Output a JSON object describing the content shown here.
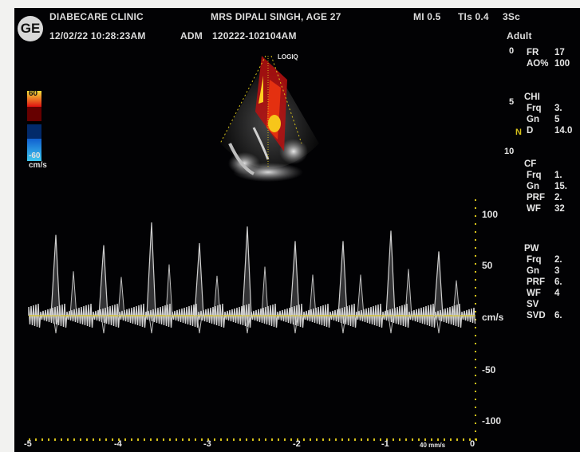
{
  "header": {
    "logo_text": "GE",
    "clinic": "DIABECARE CLINIC",
    "datetime": "12/02/22 10:28:23AM",
    "adm": "ADM",
    "patient": "MRS DIPALI SINGH, AGE 27",
    "exam_id": "120222-102104AM",
    "mi": "MI 0.5",
    "tis": "TIs 0.4",
    "probe": "3Sc",
    "preset": "Adult"
  },
  "probe_mark": "LOGIQ",
  "color_bar": {
    "top": "60",
    "bottom": "-60",
    "unit": "cm/s"
  },
  "depth_ticks": [
    "0",
    "5",
    "10"
  ],
  "depth_marker": "N",
  "params": [
    {
      "label": "FR",
      "value": "17"
    },
    {
      "label": "AO%",
      "value": "100"
    },
    {
      "label": "CHI",
      "value": ""
    },
    {
      "label": "Frq",
      "value": "3."
    },
    {
      "label": "Gn",
      "value": "5"
    },
    {
      "label": "D",
      "value": "14.0"
    },
    {
      "label": "CF",
      "value": ""
    },
    {
      "label": "Frq",
      "value": "1."
    },
    {
      "label": "Gn",
      "value": "15."
    },
    {
      "label": "PRF",
      "value": "2."
    },
    {
      "label": "WF",
      "value": "32"
    },
    {
      "label": "PW",
      "value": ""
    },
    {
      "label": "Frq",
      "value": "2."
    },
    {
      "label": "Gn",
      "value": "3"
    },
    {
      "label": "PRF",
      "value": "6."
    },
    {
      "label": "WF",
      "value": "4"
    },
    {
      "label": "SV",
      "value": ""
    },
    {
      "label": "SVD",
      "value": "6."
    }
  ],
  "doppler": {
    "velocity_scale": [
      "100",
      "50",
      "cm/s",
      "-50",
      "-100"
    ],
    "time_scale": [
      "-5",
      "-4",
      "-3",
      "-2",
      "-1",
      "0"
    ],
    "sweep_speed": "40 mm/s",
    "baseline_color": "#d7c21a",
    "peak_velocities_cm_s": [
      78,
      68,
      90,
      70,
      86,
      72,
      72,
      82,
      62
    ]
  }
}
